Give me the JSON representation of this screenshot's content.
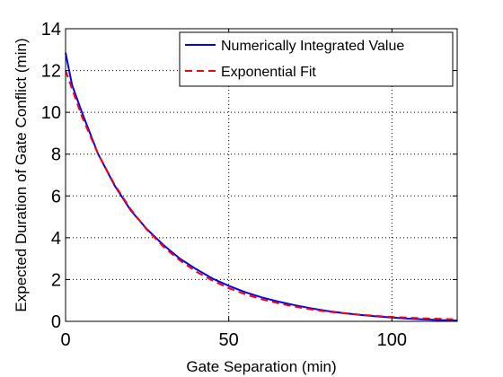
{
  "chart_data": {
    "type": "line",
    "xlabel": "Gate Separation (min)",
    "ylabel": "Expected Duration of Gate Conflict (min)",
    "xlim": [
      0,
      120
    ],
    "ylim": [
      0,
      14
    ],
    "x_ticks": [
      0,
      50,
      100
    ],
    "y_ticks": [
      0,
      2,
      4,
      6,
      8,
      10,
      12,
      14
    ],
    "grid": true,
    "legend_position": "top-right",
    "series": [
      {
        "name": "Numerically Integrated Value",
        "color": "#0000ff",
        "style": "solid",
        "x": [
          0,
          2,
          5,
          10,
          15,
          20,
          25,
          30,
          35,
          40,
          45,
          50,
          55,
          60,
          65,
          70,
          75,
          80,
          85,
          90,
          95,
          100,
          105,
          110,
          115,
          120
        ],
        "y": [
          12.85,
          11.3,
          10.0,
          8.0,
          6.5,
          5.3,
          4.4,
          3.65,
          3.0,
          2.5,
          2.05,
          1.7,
          1.4,
          1.15,
          0.95,
          0.78,
          0.63,
          0.5,
          0.4,
          0.31,
          0.24,
          0.18,
          0.13,
          0.09,
          0.06,
          0.04
        ]
      },
      {
        "name": "Exponential Fit",
        "color": "#ff0000",
        "style": "dashed",
        "x": [
          0,
          5,
          10,
          15,
          20,
          25,
          30,
          35,
          40,
          45,
          50,
          55,
          60,
          65,
          70,
          75,
          80,
          85,
          90,
          95,
          100,
          105,
          110,
          115,
          120
        ],
        "y": [
          12.0,
          9.8,
          8.0,
          6.55,
          5.35,
          4.37,
          3.57,
          2.92,
          2.38,
          1.95,
          1.59,
          1.3,
          1.06,
          0.87,
          0.71,
          0.58,
          0.47,
          0.39,
          0.32,
          0.26,
          0.21,
          0.17,
          0.14,
          0.115,
          0.09
        ]
      }
    ]
  }
}
